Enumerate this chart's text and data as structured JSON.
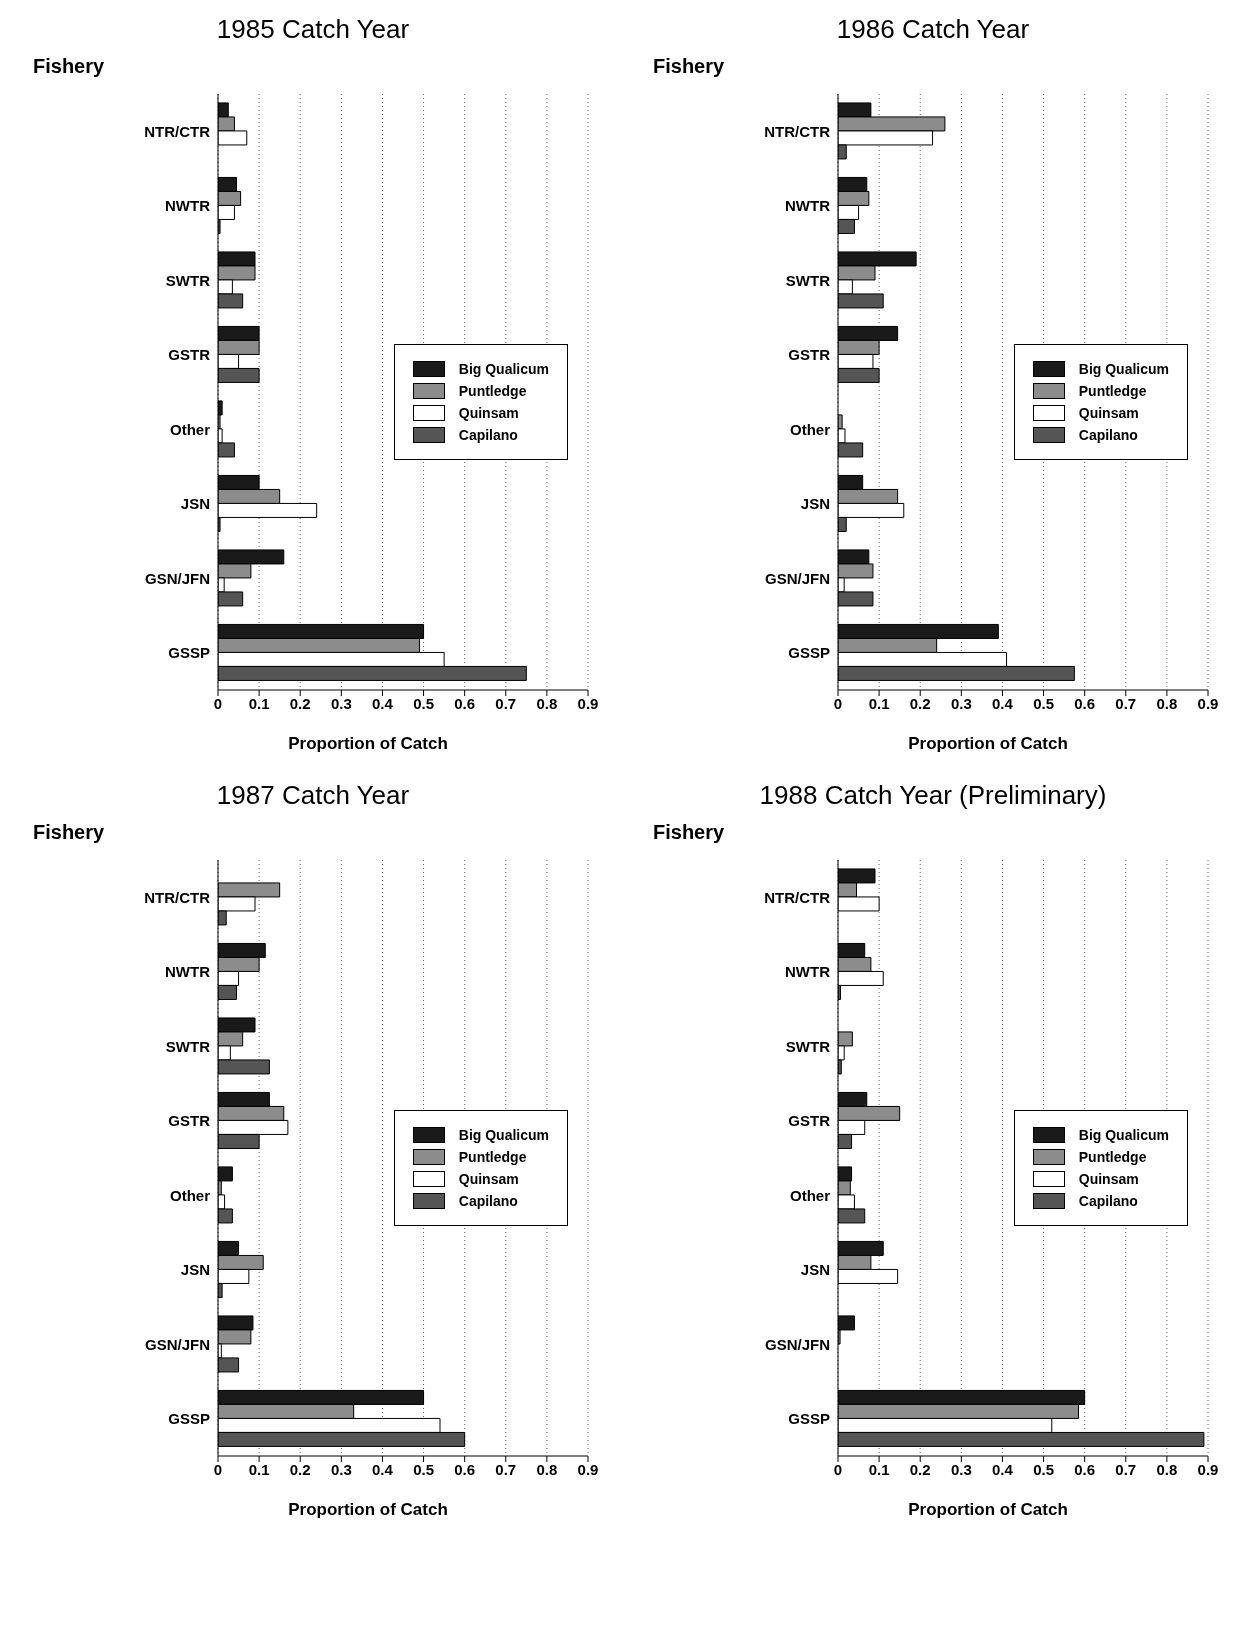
{
  "chart_data": [
    {
      "type": "bar",
      "orientation": "horizontal",
      "title": "1985 Catch Year",
      "ylabel": "Fishery",
      "xlabel": "Proportion of Catch",
      "categories": [
        "NTR/CTR",
        "NWTR",
        "SWTR",
        "GSTR",
        "Other",
        "JSN",
        "GSN/JFN",
        "GSSP"
      ],
      "xlim": [
        0,
        0.9
      ],
      "xticks": [
        0,
        0.1,
        0.2,
        0.3,
        0.4,
        0.5,
        0.6,
        0.7,
        0.8,
        0.9
      ],
      "grid": "x",
      "legend": "right",
      "series": [
        {
          "name": "Big Qualicum",
          "color": "#1a1a1a",
          "values": [
            0.025,
            0.045,
            0.09,
            0.1,
            0.01,
            0.1,
            0.16,
            0.5
          ]
        },
        {
          "name": "Puntledge",
          "color": "#8c8c8c",
          "values": [
            0.04,
            0.055,
            0.09,
            0.1,
            0.005,
            0.15,
            0.08,
            0.49
          ]
        },
        {
          "name": "Quinsam",
          "color": "#ffffff",
          "values": [
            0.07,
            0.04,
            0.035,
            0.05,
            0.01,
            0.24,
            0.015,
            0.55
          ]
        },
        {
          "name": "Capilano",
          "color": "#555555",
          "values": [
            0,
            0.005,
            0.06,
            0.1,
            0.04,
            0.005,
            0.06,
            0.75
          ]
        }
      ]
    },
    {
      "type": "bar",
      "orientation": "horizontal",
      "title": "1986 Catch Year",
      "ylabel": "Fishery",
      "xlabel": "Proportion of Catch",
      "categories": [
        "NTR/CTR",
        "NWTR",
        "SWTR",
        "GSTR",
        "Other",
        "JSN",
        "GSN/JFN",
        "GSSP"
      ],
      "xlim": [
        0,
        0.9
      ],
      "xticks": [
        0,
        0.1,
        0.2,
        0.3,
        0.4,
        0.5,
        0.6,
        0.7,
        0.8,
        0.9
      ],
      "grid": "x",
      "legend": "right",
      "series": [
        {
          "name": "Big Qualicum",
          "color": "#1a1a1a",
          "values": [
            0.08,
            0.07,
            0.19,
            0.145,
            0,
            0.06,
            0.075,
            0.39
          ]
        },
        {
          "name": "Puntledge",
          "color": "#8c8c8c",
          "values": [
            0.26,
            0.075,
            0.09,
            0.1,
            0.01,
            0.145,
            0.085,
            0.24
          ]
        },
        {
          "name": "Quinsam",
          "color": "#ffffff",
          "values": [
            0.23,
            0.05,
            0.035,
            0.085,
            0.017,
            0.16,
            0.015,
            0.41
          ]
        },
        {
          "name": "Capilano",
          "color": "#555555",
          "values": [
            0.02,
            0.04,
            0.11,
            0.1,
            0.06,
            0.02,
            0.085,
            0.575
          ]
        }
      ]
    },
    {
      "type": "bar",
      "orientation": "horizontal",
      "title": "1987 Catch Year",
      "ylabel": "Fishery",
      "xlabel": "Proportion of Catch",
      "categories": [
        "NTR/CTR",
        "NWTR",
        "SWTR",
        "GSTR",
        "Other",
        "JSN",
        "GSN/JFN",
        "GSSP"
      ],
      "xlim": [
        0,
        0.9
      ],
      "xticks": [
        0,
        0.1,
        0.2,
        0.3,
        0.4,
        0.5,
        0.6,
        0.7,
        0.8,
        0.9
      ],
      "grid": "x",
      "legend": "right",
      "series": [
        {
          "name": "Big Qualicum",
          "color": "#1a1a1a",
          "values": [
            0,
            0.115,
            0.09,
            0.125,
            0.035,
            0.05,
            0.085,
            0.5
          ]
        },
        {
          "name": "Puntledge",
          "color": "#8c8c8c",
          "values": [
            0.15,
            0.1,
            0.06,
            0.16,
            0.008,
            0.11,
            0.08,
            0.33
          ]
        },
        {
          "name": "Quinsam",
          "color": "#ffffff",
          "values": [
            0.09,
            0.05,
            0.03,
            0.17,
            0.016,
            0.075,
            0.008,
            0.54
          ]
        },
        {
          "name": "Capilano",
          "color": "#555555",
          "values": [
            0.02,
            0.045,
            0.125,
            0.1,
            0.035,
            0.01,
            0.05,
            0.6
          ]
        }
      ]
    },
    {
      "type": "bar",
      "orientation": "horizontal",
      "title": "1988 Catch Year (Preliminary)",
      "ylabel": "Fishery",
      "xlabel": "Proportion of Catch",
      "categories": [
        "NTR/CTR",
        "NWTR",
        "SWTR",
        "GSTR",
        "Other",
        "JSN",
        "GSN/JFN",
        "GSSP"
      ],
      "xlim": [
        0,
        0.9
      ],
      "xticks": [
        0,
        0.1,
        0.2,
        0.3,
        0.4,
        0.5,
        0.6,
        0.7,
        0.8,
        0.9
      ],
      "grid": "x",
      "legend": "right",
      "series": [
        {
          "name": "Big Qualicum",
          "color": "#1a1a1a",
          "values": [
            0.09,
            0.065,
            0,
            0.07,
            0.033,
            0.11,
            0.04,
            0.6
          ]
        },
        {
          "name": "Puntledge",
          "color": "#8c8c8c",
          "values": [
            0.045,
            0.08,
            0.035,
            0.15,
            0.03,
            0.08,
            0.005,
            0.585
          ]
        },
        {
          "name": "Quinsam",
          "color": "#ffffff",
          "values": [
            0.1,
            0.11,
            0.015,
            0.065,
            0.04,
            0.145,
            0,
            0.52
          ]
        },
        {
          "name": "Capilano",
          "color": "#555555",
          "values": [
            0,
            0.006,
            0.008,
            0.033,
            0.065,
            0,
            0,
            0.89
          ]
        }
      ]
    }
  ]
}
